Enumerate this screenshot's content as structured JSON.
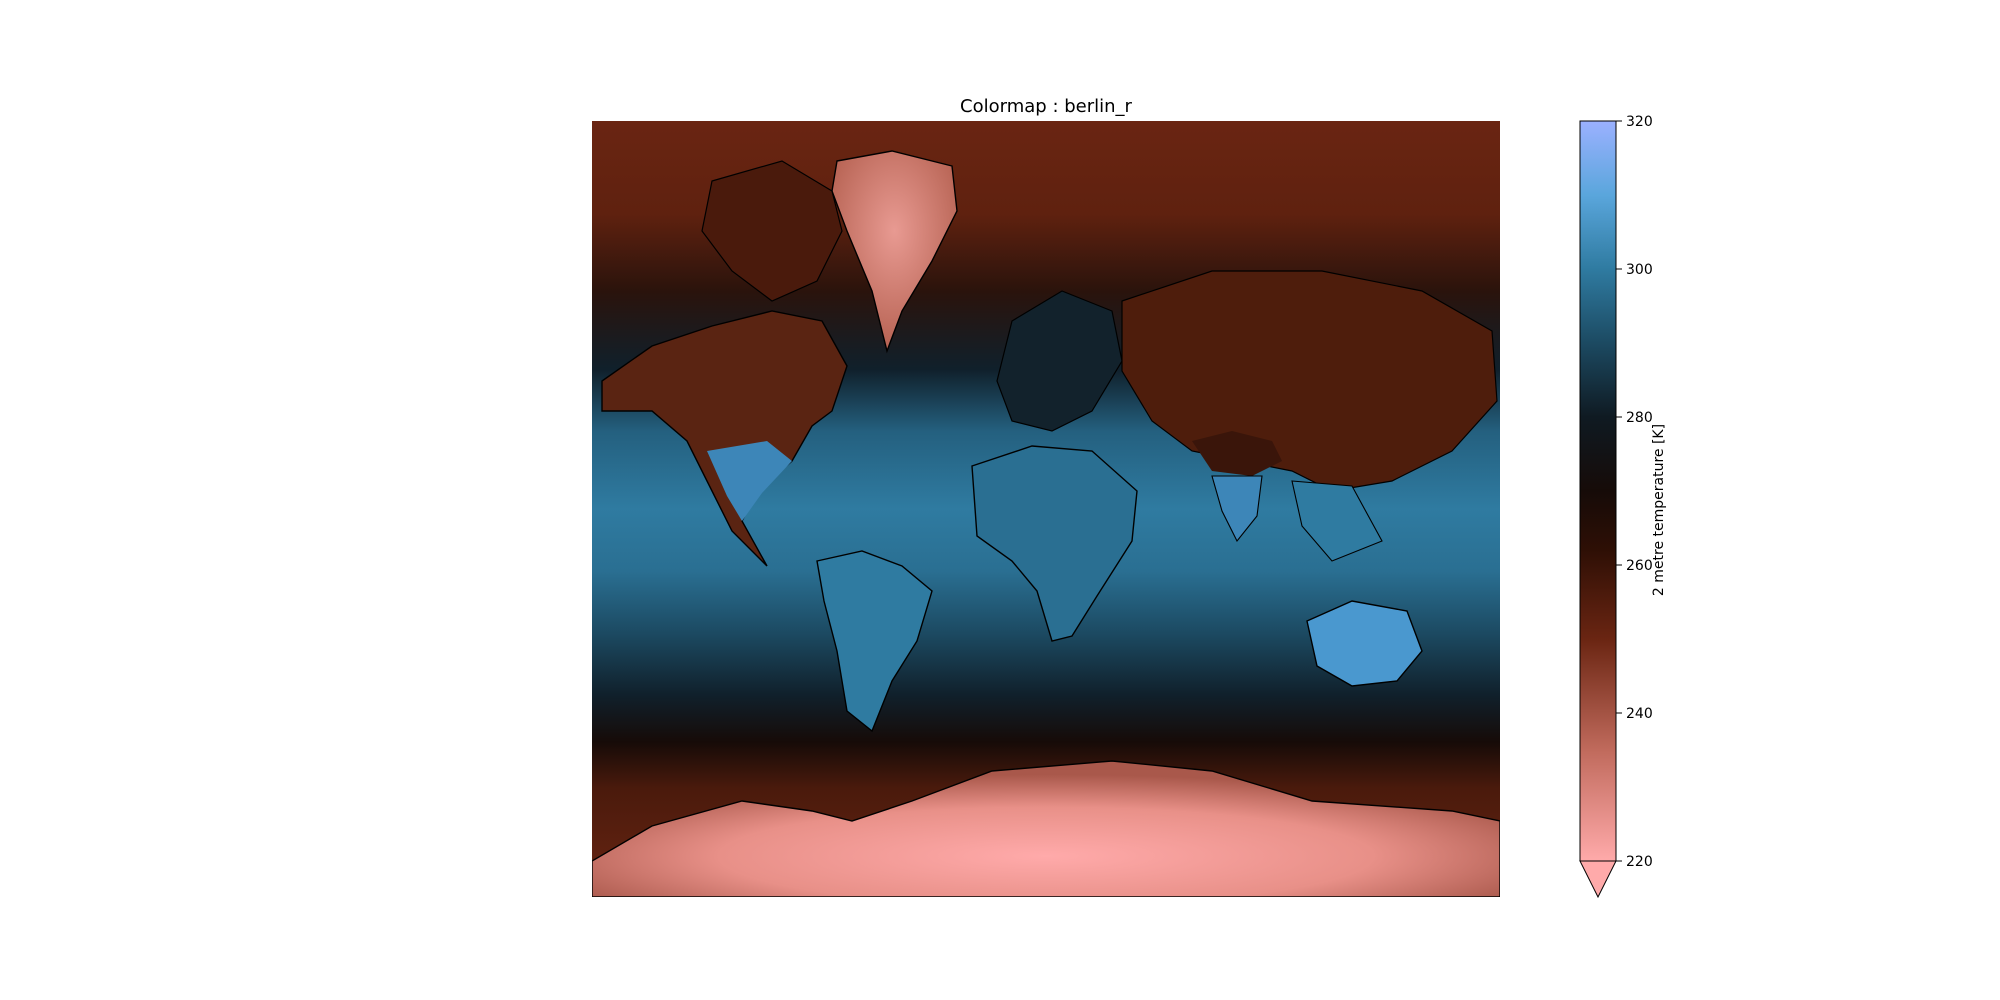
{
  "figure": {
    "title": "Colormap : berlin_r",
    "projection": "mercator",
    "map_features": [
      "coastlines",
      "country-borders"
    ],
    "field_description": "2 metre temperature field over the globe",
    "colormap": {
      "name": "berlin_r",
      "stops": [
        {
          "value": 220,
          "color": "#ffaaaa"
        },
        {
          "value": 235,
          "color": "#c06a5c"
        },
        {
          "value": 250,
          "color": "#6a2512"
        },
        {
          "value": 262,
          "color": "#2e0f05"
        },
        {
          "value": 270,
          "color": "#160b08"
        },
        {
          "value": 280,
          "color": "#0f1a22"
        },
        {
          "value": 290,
          "color": "#1c4a62"
        },
        {
          "value": 300,
          "color": "#2f7ba1"
        },
        {
          "value": 310,
          "color": "#5aa6dc"
        },
        {
          "value": 320,
          "color": "#9bb1ff"
        }
      ]
    },
    "colorbar": {
      "label": "2 metre temperature [K]",
      "min": 220,
      "max": 320,
      "extend": "min",
      "ticks": [
        "220",
        "240",
        "260",
        "280",
        "300",
        "320"
      ]
    }
  }
}
